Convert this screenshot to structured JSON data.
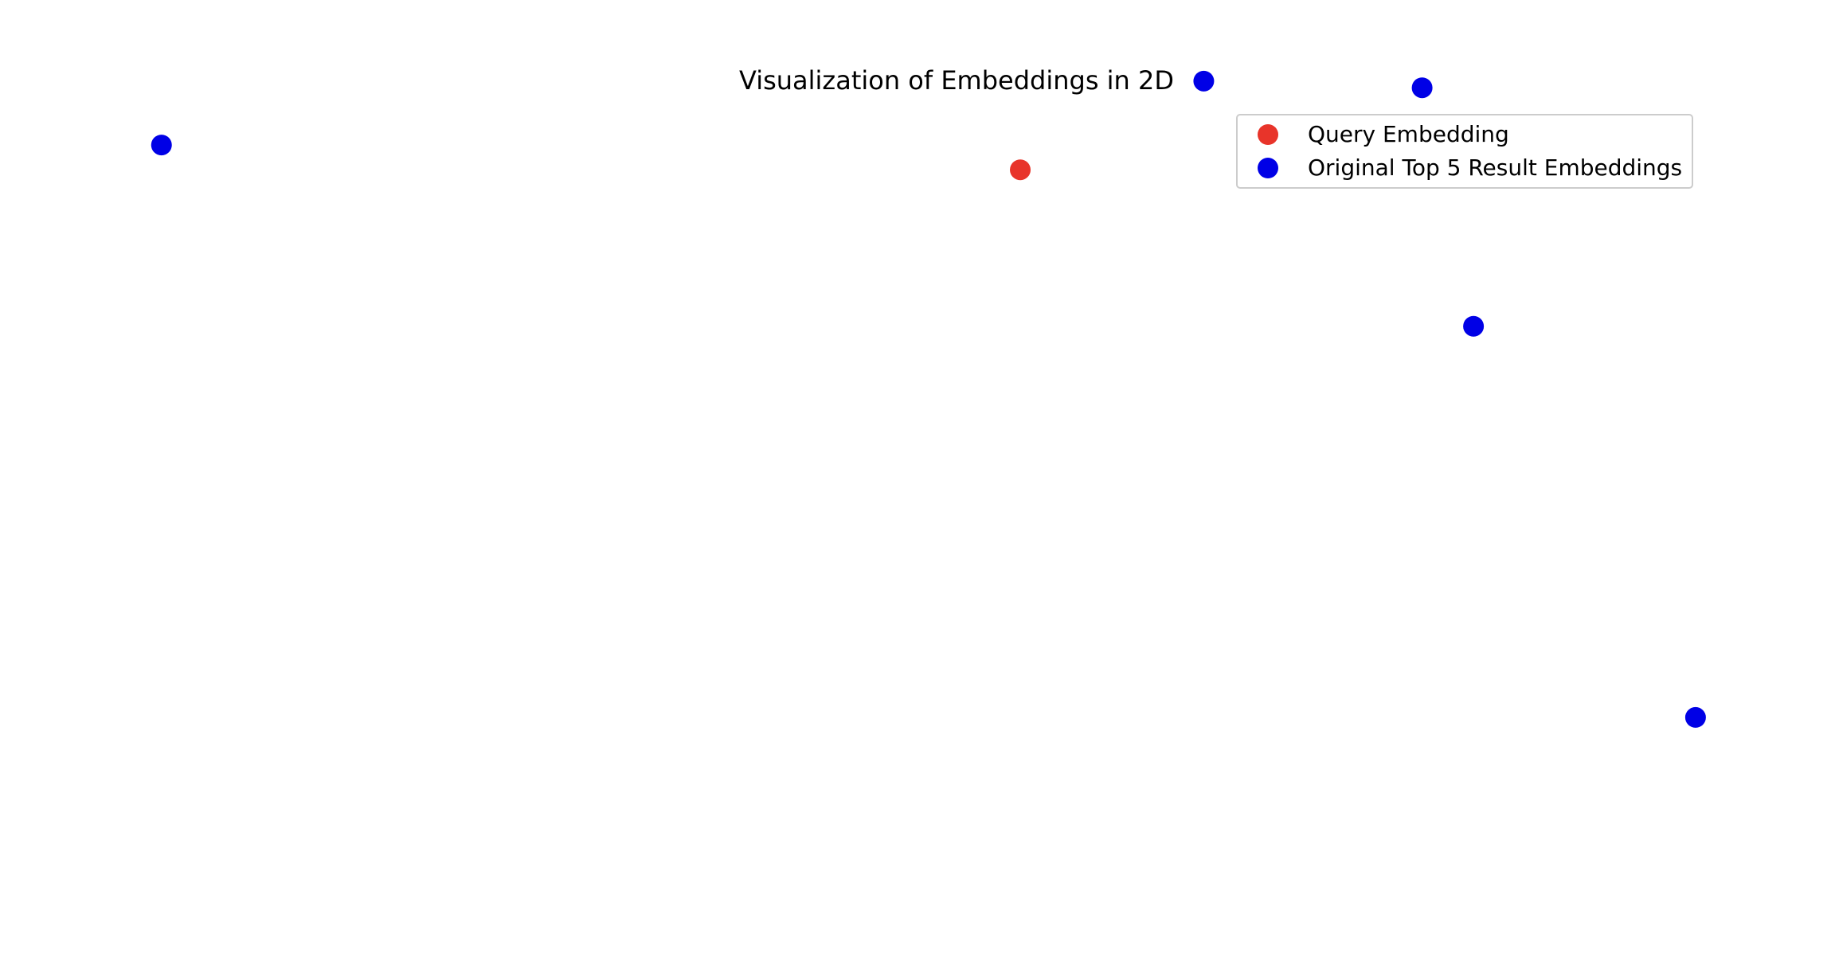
{
  "chart_data": {
    "type": "scatter",
    "title": "Visualization of Embeddings in 2D",
    "xlabel": "",
    "ylabel": "",
    "axes_visible": false,
    "grid": false,
    "legend_placement": "top-right",
    "xlim": [
      0,
      1
    ],
    "ylim": [
      0,
      1
    ],
    "series": [
      {
        "name": "Query Embedding",
        "color": "#e8342a",
        "points": [
          {
            "x": 0.556,
            "y": 0.822
          }
        ]
      },
      {
        "name": "Original Top 5 Result Embeddings",
        "color": "#0000e6",
        "points": [
          {
            "x": 0.088,
            "y": 0.848
          },
          {
            "x": 0.656,
            "y": 0.915
          },
          {
            "x": 0.775,
            "y": 0.908
          },
          {
            "x": 0.803,
            "y": 0.658
          },
          {
            "x": 0.924,
            "y": 0.248
          }
        ]
      }
    ]
  }
}
